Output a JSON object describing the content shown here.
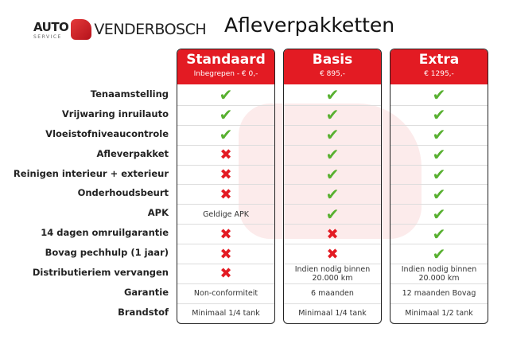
{
  "logo": {
    "auto": "AUTO",
    "service": "SERVICE",
    "brand": "VENDERBOSCH"
  },
  "title": "Afleverpakketten",
  "rows": [
    "Tenaamstelling",
    "Vrijwaring inruilauto",
    "Vloeistofniveaucontrole",
    "Afleverpakket",
    "Reinigen interieur + exterieur",
    "Onderhoudsbeurt",
    "APK",
    "14 dagen omruilgarantie",
    "Bovag pechhulp (1 jaar)",
    "Distributieriem vervangen",
    "Garantie",
    "Brandstof"
  ],
  "packages": [
    {
      "name": "Standaard",
      "price": "Inbegrepen - € 0,-",
      "cells": [
        "check",
        "check",
        "check",
        "cross",
        "cross",
        "cross",
        "Geldige APK",
        "cross",
        "cross",
        "cross",
        "Non-conformiteit",
        "Minimaal 1/4 tank"
      ]
    },
    {
      "name": "Basis",
      "price": "€ 895,-",
      "cells": [
        "check",
        "check",
        "check",
        "check",
        "check",
        "check",
        "check",
        "cross",
        "cross",
        "Indien nodig binnen 20.000 km",
        "6 maanden",
        "Minimaal 1/4 tank"
      ]
    },
    {
      "name": "Extra",
      "price": "€ 1295,-",
      "cells": [
        "check",
        "check",
        "check",
        "check",
        "check",
        "check",
        "check",
        "check",
        "check",
        "Indien nodig binnen 20.000 km",
        "12 maanden Bovag",
        "Minimaal 1/2 tank"
      ]
    }
  ],
  "colors": {
    "accent": "#e31b23",
    "check": "#58b030"
  }
}
